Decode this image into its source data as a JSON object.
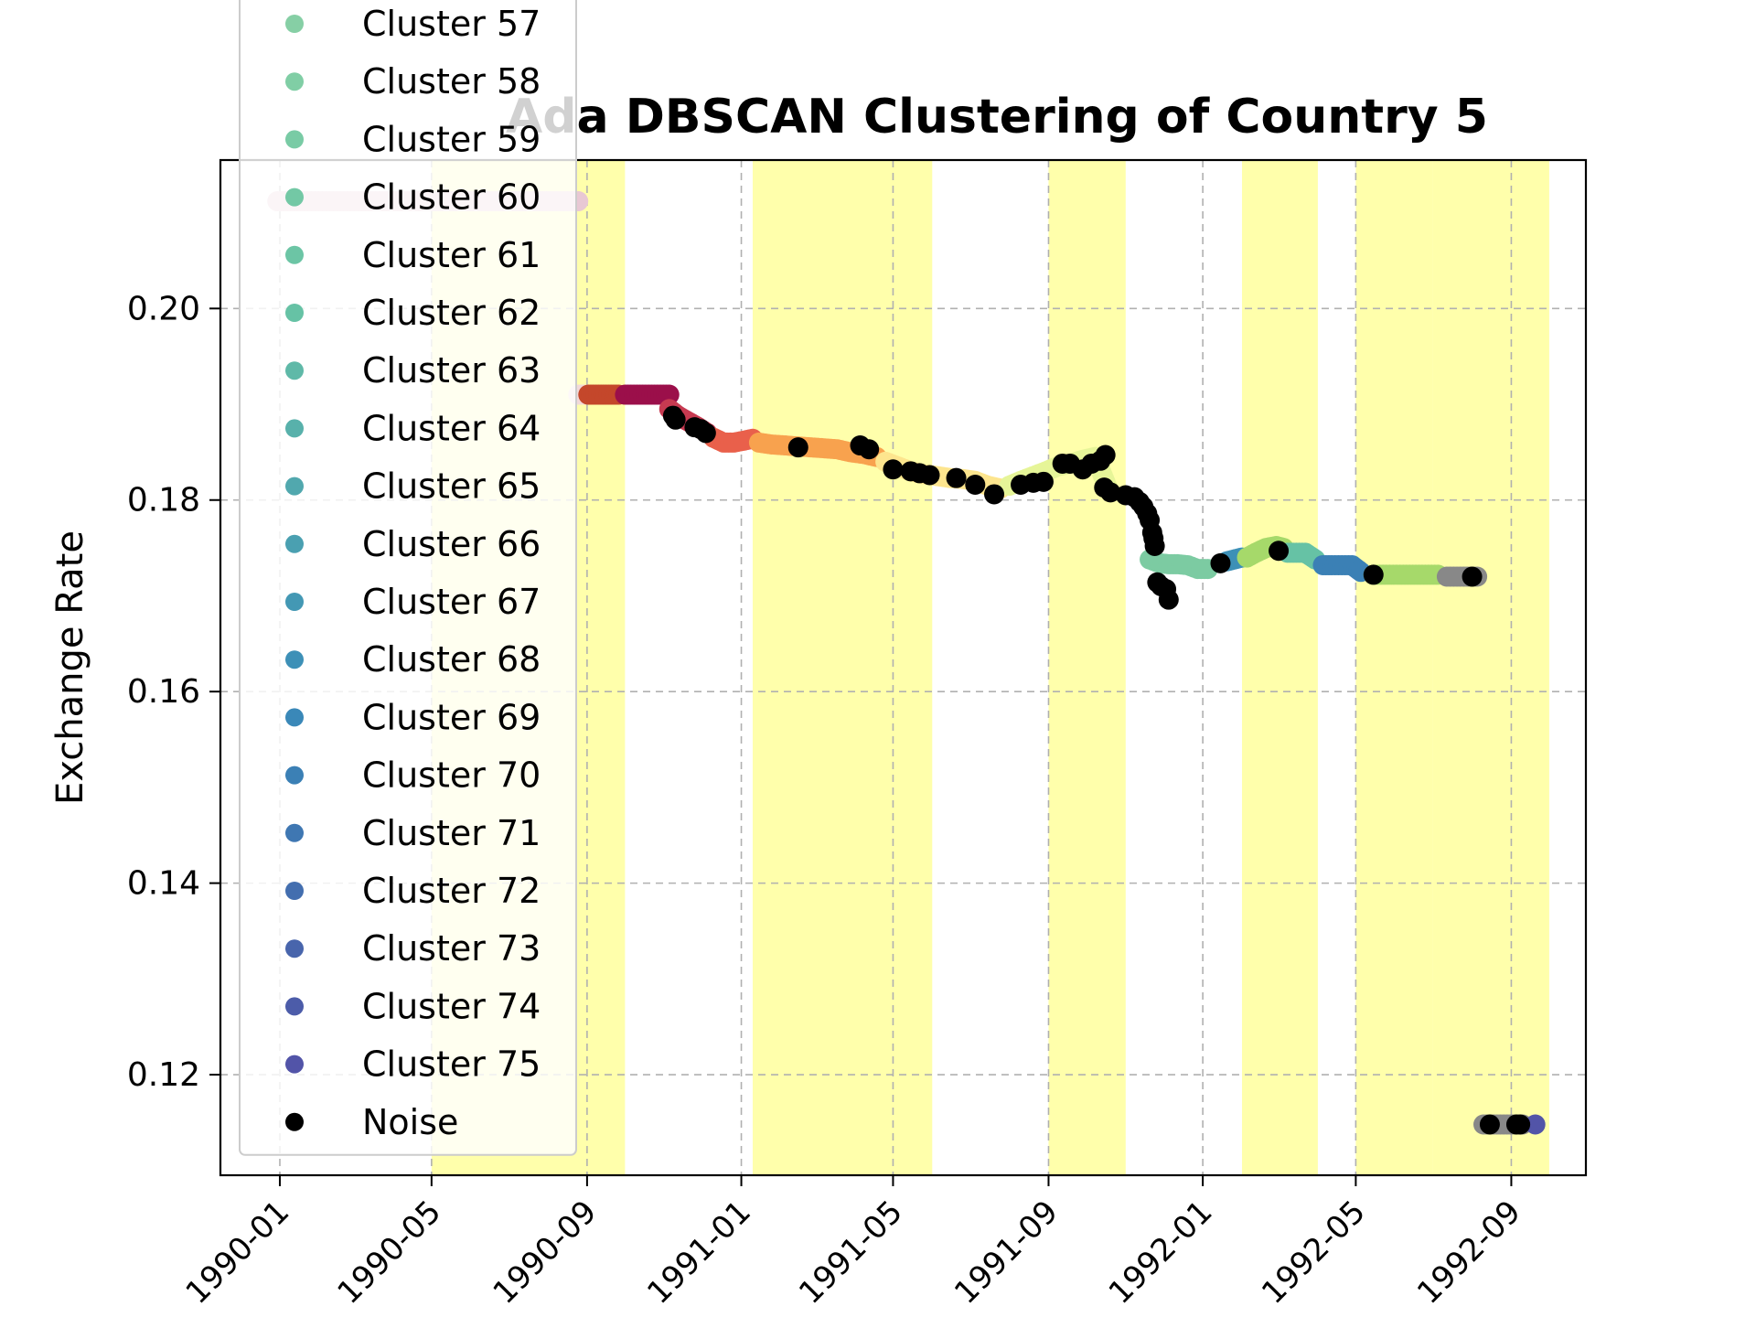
{
  "chart_data": {
    "type": "scatter",
    "title": "Ada DBSCAN Clustering of Country 5",
    "xlabel": "",
    "ylabel": "Exchange Rate",
    "xlim": [
      "1989-11-15",
      "1992-10-30"
    ],
    "ylim": [
      0.1095,
      0.2155
    ],
    "x_ticks": [
      "1990-01",
      "1990-05",
      "1990-09",
      "1991-01",
      "1991-05",
      "1991-09",
      "1992-01",
      "1992-05",
      "1992-09"
    ],
    "y_ticks": [
      "0.12",
      "0.14",
      "0.16",
      "0.18",
      "0.20"
    ],
    "grid": true,
    "legend_position": "upper-left",
    "legend": [
      {
        "label": "Cluster 57",
        "color": "#86cfa5"
      },
      {
        "label": "Cluster 58",
        "color": "#80cea5"
      },
      {
        "label": "Cluster 59",
        "color": "#79cba5"
      },
      {
        "label": "Cluster 60",
        "color": "#73c8a5"
      },
      {
        "label": "Cluster 61",
        "color": "#6cc5a5"
      },
      {
        "label": "Cluster 62",
        "color": "#66c2a5"
      },
      {
        "label": "Cluster 63",
        "color": "#5fb9a8"
      },
      {
        "label": "Cluster 64",
        "color": "#58b1ab"
      },
      {
        "label": "Cluster 65",
        "color": "#51a8ae"
      },
      {
        "label": "Cluster 66",
        "color": "#4aa0b1"
      },
      {
        "label": "Cluster 67",
        "color": "#4398b4"
      },
      {
        "label": "Cluster 68",
        "color": "#3d90b7"
      },
      {
        "label": "Cluster 69",
        "color": "#3a88b8"
      },
      {
        "label": "Cluster 70",
        "color": "#3b80b5"
      },
      {
        "label": "Cluster 71",
        "color": "#3f77b2"
      },
      {
        "label": "Cluster 72",
        "color": "#436eaf"
      },
      {
        "label": "Cluster 73",
        "color": "#4865ac"
      },
      {
        "label": "Cluster 74",
        "color": "#4c5ca9"
      },
      {
        "label": "Cluster 75",
        "color": "#5254a8"
      },
      {
        "label": "Noise",
        "color": "#000000"
      }
    ],
    "highlight_color": "#ffff66",
    "highlight_spans": [
      [
        "1990-05-01",
        "1990-10-01"
      ],
      [
        "1991-01-10",
        "1991-06-01"
      ],
      [
        "1991-09-01",
        "1991-11-01"
      ],
      [
        "1992-02-01",
        "1992-04-01"
      ],
      [
        "1992-05-01",
        "1992-07-01"
      ],
      [
        "1992-07-01",
        "1992-10-01"
      ]
    ],
    "series": [
      {
        "color": "#e8c8d4",
        "points": [
          [
            "1989-12-30",
            0.2112
          ],
          [
            "1990-01-20",
            0.2112
          ],
          [
            "1990-02-15",
            0.2112
          ],
          [
            "1990-03-15",
            0.2112
          ],
          [
            "1990-04-15",
            0.2112
          ],
          [
            "1990-05-15",
            0.2112
          ],
          [
            "1990-06-15",
            0.2112
          ],
          [
            "1990-07-15",
            0.2112
          ],
          [
            "1990-08-05",
            0.2112
          ],
          [
            "1990-08-25",
            0.2112
          ]
        ]
      },
      {
        "color": "#f2d9d9",
        "points": [
          [
            "1990-08-25",
            0.191
          ],
          [
            "1990-09-01",
            0.191
          ]
        ]
      },
      {
        "color": "#c4472b",
        "points": [
          [
            "1990-09-02",
            0.191
          ],
          [
            "1990-09-08",
            0.191
          ],
          [
            "1990-09-14",
            0.191
          ],
          [
            "1990-09-20",
            0.191
          ],
          [
            "1990-09-26",
            0.191
          ]
        ]
      },
      {
        "color": "#9b0f4a",
        "points": [
          [
            "1990-10-01",
            0.191
          ],
          [
            "1990-10-08",
            0.191
          ],
          [
            "1990-10-15",
            0.191
          ],
          [
            "1990-10-22",
            0.191
          ],
          [
            "1990-10-29",
            0.191
          ],
          [
            "1990-11-05",
            0.191
          ]
        ]
      },
      {
        "color": "#c73a51",
        "points": [
          [
            "1990-11-05",
            0.1895
          ],
          [
            "1990-11-12",
            0.1888
          ],
          [
            "1990-11-20",
            0.1882
          ],
          [
            "1990-11-28",
            0.1876
          ],
          [
            "1990-12-05",
            0.187
          ]
        ]
      },
      {
        "color": "#e9604b",
        "points": [
          [
            "1990-12-10",
            0.1865
          ],
          [
            "1990-12-18",
            0.186
          ],
          [
            "1990-12-26",
            0.186
          ],
          [
            "1991-01-03",
            0.1862
          ],
          [
            "1991-01-10",
            0.1864
          ]
        ]
      },
      {
        "color": "#f8a24e",
        "points": [
          [
            "1991-01-15",
            0.186
          ],
          [
            "1991-01-25",
            0.1858
          ],
          [
            "1991-02-05",
            0.1857
          ],
          [
            "1991-02-15",
            0.1856
          ],
          [
            "1991-02-25",
            0.1855
          ],
          [
            "1991-03-08",
            0.1854
          ],
          [
            "1991-03-18",
            0.1853
          ],
          [
            "1991-03-28",
            0.185
          ],
          [
            "1991-04-08",
            0.1848
          ],
          [
            "1991-04-18",
            0.1845
          ]
        ]
      },
      {
        "color": "#fde58e",
        "points": [
          [
            "1991-04-25",
            0.184
          ],
          [
            "1991-05-05",
            0.1835
          ],
          [
            "1991-05-15",
            0.183
          ],
          [
            "1991-05-25",
            0.1827
          ],
          [
            "1991-06-05",
            0.1825
          ],
          [
            "1991-06-15",
            0.1823
          ],
          [
            "1991-06-25",
            0.1822
          ],
          [
            "1991-07-05",
            0.182
          ],
          [
            "1991-07-15",
            0.1815
          ],
          [
            "1991-07-25",
            0.1812
          ]
        ]
      },
      {
        "color": "#e6f598",
        "points": [
          [
            "1991-08-01",
            0.1815
          ],
          [
            "1991-08-10",
            0.182
          ],
          [
            "1991-08-20",
            0.1825
          ],
          [
            "1991-08-30",
            0.183
          ],
          [
            "1991-09-08",
            0.1835
          ],
          [
            "1991-09-18",
            0.1838
          ],
          [
            "1991-09-28",
            0.1842
          ],
          [
            "1991-10-08",
            0.1845
          ],
          [
            "1991-10-18",
            0.1812
          ]
        ]
      },
      {
        "color": "#7ccba2",
        "points": [
          [
            "1991-11-20",
            0.1738
          ],
          [
            "1991-11-28",
            0.1734
          ],
          [
            "1991-12-05",
            0.1733
          ],
          [
            "1991-12-12",
            0.1733
          ],
          [
            "1991-12-20",
            0.1732
          ],
          [
            "1991-12-28",
            0.1728
          ],
          [
            "1992-01-05",
            0.1728
          ]
        ]
      },
      {
        "color": "#3d90b7",
        "points": [
          [
            "1992-01-20",
            0.1736
          ],
          [
            "1992-01-26",
            0.1738
          ],
          [
            "1992-02-01",
            0.174
          ]
        ]
      },
      {
        "color": "#a6d96a",
        "points": [
          [
            "1992-02-05",
            0.174
          ],
          [
            "1992-02-12",
            0.1745
          ],
          [
            "1992-02-20",
            0.175
          ],
          [
            "1992-02-28",
            0.1752
          ],
          [
            "1992-03-05",
            0.175
          ]
        ]
      },
      {
        "color": "#66c2a5",
        "points": [
          [
            "1992-03-08",
            0.1745
          ],
          [
            "1992-03-15",
            0.1745
          ],
          [
            "1992-03-22",
            0.1745
          ],
          [
            "1992-03-30",
            0.1738
          ]
        ]
      },
      {
        "color": "#3b80b5",
        "points": [
          [
            "1992-04-05",
            0.1732
          ],
          [
            "1992-04-12",
            0.1732
          ],
          [
            "1992-04-20",
            0.1732
          ],
          [
            "1992-04-28",
            0.1732
          ],
          [
            "1992-05-05",
            0.1725
          ]
        ]
      },
      {
        "color": "#a6d96a",
        "points": [
          [
            "1992-05-15",
            0.1722
          ],
          [
            "1992-05-25",
            0.1722
          ],
          [
            "1992-06-05",
            0.1722
          ],
          [
            "1992-06-15",
            0.1722
          ],
          [
            "1992-06-25",
            0.1722
          ],
          [
            "1992-07-05",
            0.1722
          ]
        ]
      },
      {
        "color": "#888888",
        "points": [
          [
            "1992-07-12",
            0.172
          ],
          [
            "1992-07-20",
            0.172
          ],
          [
            "1992-07-28",
            0.172
          ],
          [
            "1992-08-05",
            0.172
          ]
        ]
      },
      {
        "color": "#888888",
        "points": [
          [
            "1992-08-10",
            0.1148
          ],
          [
            "1992-08-18",
            0.1148
          ],
          [
            "1992-08-26",
            0.1148
          ],
          [
            "1992-09-03",
            0.1148
          ],
          [
            "1992-09-10",
            0.1148
          ]
        ]
      },
      {
        "color": "#5254a8",
        "points": [
          [
            "1992-09-20",
            0.1148
          ]
        ]
      }
    ],
    "noise_points": [
      [
        "1990-11-08",
        0.1888
      ],
      [
        "1990-11-10",
        0.1884
      ],
      [
        "1990-11-25",
        0.1876
      ],
      [
        "1990-11-30",
        0.1874
      ],
      [
        "1990-12-04",
        0.187
      ],
      [
        "1991-02-15",
        0.1855
      ],
      [
        "1991-04-05",
        0.1857
      ],
      [
        "1991-04-12",
        0.1853
      ],
      [
        "1991-05-01",
        0.1832
      ],
      [
        "1991-05-15",
        0.183
      ],
      [
        "1991-05-22",
        0.1828
      ],
      [
        "1991-05-30",
        0.1826
      ],
      [
        "1991-06-20",
        0.1823
      ],
      [
        "1991-07-05",
        0.1816
      ],
      [
        "1991-07-20",
        0.1806
      ],
      [
        "1991-08-10",
        0.1816
      ],
      [
        "1991-08-20",
        0.1818
      ],
      [
        "1991-08-28",
        0.1819
      ],
      [
        "1991-09-12",
        0.1838
      ],
      [
        "1991-09-18",
        0.1838
      ],
      [
        "1991-09-28",
        0.1832
      ],
      [
        "1991-10-05",
        0.1838
      ],
      [
        "1991-10-12",
        0.1841
      ],
      [
        "1991-10-16",
        0.1847
      ],
      [
        "1991-10-15",
        0.1813
      ],
      [
        "1991-10-20",
        0.1808
      ],
      [
        "1991-11-01",
        0.1805
      ],
      [
        "1991-11-08",
        0.1803
      ],
      [
        "1991-11-12",
        0.1798
      ],
      [
        "1991-11-15",
        0.1793
      ],
      [
        "1991-11-18",
        0.1786
      ],
      [
        "1991-11-20",
        0.1779
      ],
      [
        "1991-11-22",
        0.1766
      ],
      [
        "1991-11-23",
        0.176
      ],
      [
        "1991-11-24",
        0.1752
      ],
      [
        "1991-11-26",
        0.1714
      ],
      [
        "1991-11-29",
        0.171
      ],
      [
        "1991-12-03",
        0.1707
      ],
      [
        "1991-12-05",
        0.1696
      ],
      [
        "1992-01-15",
        0.1734
      ],
      [
        "1992-03-01",
        0.1747
      ],
      [
        "1992-05-15",
        0.1722
      ],
      [
        "1992-08-01",
        0.172
      ],
      [
        "1992-08-15",
        0.1148
      ],
      [
        "1992-09-05",
        0.1148
      ],
      [
        "1992-09-08",
        0.1148
      ]
    ]
  }
}
